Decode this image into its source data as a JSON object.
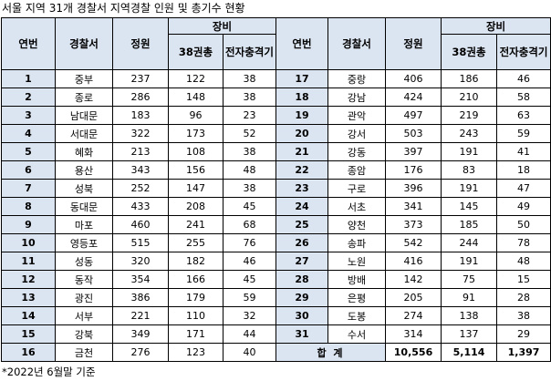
{
  "title": "서울 지역 31개 경찰서 지역경찰 인원 및 총기수 현황",
  "headers": {
    "no": "연번",
    "station": "경찰서",
    "quota": "정원",
    "equipment": "장비",
    "gun38": "38권총",
    "taser": "전자충격기"
  },
  "rows": [
    {
      "left": {
        "no": "1",
        "station": "중부",
        "quota": "237",
        "gun": "122",
        "taser": "38"
      },
      "right": {
        "no": "17",
        "station": "중랑",
        "quota": "406",
        "gun": "186",
        "taser": "46"
      }
    },
    {
      "left": {
        "no": "2",
        "station": "종로",
        "quota": "286",
        "gun": "148",
        "taser": "38"
      },
      "right": {
        "no": "18",
        "station": "강남",
        "quota": "424",
        "gun": "210",
        "taser": "58"
      }
    },
    {
      "left": {
        "no": "3",
        "station": "남대문",
        "quota": "183",
        "gun": "96",
        "taser": "23"
      },
      "right": {
        "no": "19",
        "station": "관악",
        "quota": "497",
        "gun": "219",
        "taser": "63"
      }
    },
    {
      "left": {
        "no": "4",
        "station": "서대문",
        "quota": "322",
        "gun": "173",
        "taser": "52"
      },
      "right": {
        "no": "20",
        "station": "강서",
        "quota": "503",
        "gun": "243",
        "taser": "59"
      }
    },
    {
      "left": {
        "no": "5",
        "station": "혜화",
        "quota": "213",
        "gun": "108",
        "taser": "38"
      },
      "right": {
        "no": "21",
        "station": "강동",
        "quota": "397",
        "gun": "191",
        "taser": "41"
      }
    },
    {
      "left": {
        "no": "6",
        "station": "용산",
        "quota": "343",
        "gun": "156",
        "taser": "48"
      },
      "right": {
        "no": "22",
        "station": "종암",
        "quota": "176",
        "gun": "83",
        "taser": "18"
      }
    },
    {
      "left": {
        "no": "7",
        "station": "성북",
        "quota": "252",
        "gun": "147",
        "taser": "38"
      },
      "right": {
        "no": "23",
        "station": "구로",
        "quota": "396",
        "gun": "191",
        "taser": "47"
      }
    },
    {
      "left": {
        "no": "8",
        "station": "동대문",
        "quota": "433",
        "gun": "208",
        "taser": "45"
      },
      "right": {
        "no": "24",
        "station": "서초",
        "quota": "341",
        "gun": "145",
        "taser": "49"
      }
    },
    {
      "left": {
        "no": "9",
        "station": "마포",
        "quota": "460",
        "gun": "241",
        "taser": "68"
      },
      "right": {
        "no": "25",
        "station": "양천",
        "quota": "373",
        "gun": "185",
        "taser": "50"
      }
    },
    {
      "left": {
        "no": "10",
        "station": "영등포",
        "quota": "515",
        "gun": "255",
        "taser": "76"
      },
      "right": {
        "no": "26",
        "station": "송파",
        "quota": "542",
        "gun": "244",
        "taser": "78"
      }
    },
    {
      "left": {
        "no": "11",
        "station": "성동",
        "quota": "320",
        "gun": "182",
        "taser": "46"
      },
      "right": {
        "no": "27",
        "station": "노원",
        "quota": "416",
        "gun": "191",
        "taser": "48"
      }
    },
    {
      "left": {
        "no": "12",
        "station": "동작",
        "quota": "354",
        "gun": "166",
        "taser": "45"
      },
      "right": {
        "no": "28",
        "station": "방배",
        "quota": "142",
        "gun": "75",
        "taser": "15"
      }
    },
    {
      "left": {
        "no": "13",
        "station": "광진",
        "quota": "386",
        "gun": "179",
        "taser": "59"
      },
      "right": {
        "no": "29",
        "station": "은평",
        "quota": "205",
        "gun": "91",
        "taser": "28"
      }
    },
    {
      "left": {
        "no": "14",
        "station": "서부",
        "quota": "221",
        "gun": "110",
        "taser": "32"
      },
      "right": {
        "no": "30",
        "station": "도봉",
        "quota": "274",
        "gun": "138",
        "taser": "38"
      }
    },
    {
      "left": {
        "no": "15",
        "station": "강북",
        "quota": "349",
        "gun": "171",
        "taser": "44"
      },
      "right": {
        "no": "31",
        "station": "수서",
        "quota": "314",
        "gun": "137",
        "taser": "29"
      }
    }
  ],
  "last_row": {
    "no": "16",
    "station": "금천",
    "quota": "276",
    "gun": "123",
    "taser": "40"
  },
  "total": {
    "label": "합 계",
    "quota": "10,556",
    "gun": "5,114",
    "taser": "1,397"
  },
  "note": "*2022년 6월말 기준"
}
